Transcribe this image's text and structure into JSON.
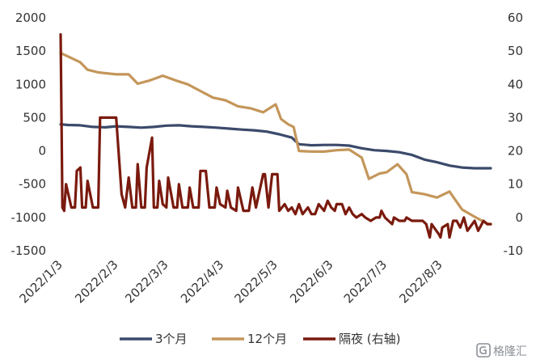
{
  "chart_data": {
    "type": "line",
    "x_type": "date",
    "x_ticks": [
      "2022/1/3",
      "2022/2/3",
      "2022/3/3",
      "2022/4/3",
      "2022/5/3",
      "2022/6/3",
      "2022/7/3",
      "2022/8/3"
    ],
    "x_range": [
      "2022/1/3",
      "2022/8/31"
    ],
    "y_left": {
      "min": -1500,
      "max": 2000,
      "step": 500,
      "ticks": [
        "2000",
        "1500",
        "1000",
        "500",
        "0",
        "-500",
        "-1000",
        "-1500"
      ]
    },
    "y_right": {
      "min": -10,
      "max": 60,
      "step": 10,
      "ticks": [
        "60",
        "50",
        "40",
        "30",
        "20",
        "10",
        "0",
        "-10"
      ]
    },
    "grid": false,
    "legend_position": "bottom",
    "series": [
      {
        "name": "3个月",
        "axis": "left",
        "color": "#3b4a6b",
        "points": [
          [
            "2022/1/3",
            400
          ],
          [
            "2022/1/7",
            390
          ],
          [
            "2022/1/14",
            385
          ],
          [
            "2022/1/21",
            360
          ],
          [
            "2022/1/28",
            355
          ],
          [
            "2022/2/3",
            370
          ],
          [
            "2022/2/10",
            360
          ],
          [
            "2022/2/17",
            350
          ],
          [
            "2022/2/24",
            360
          ],
          [
            "2022/3/3",
            380
          ],
          [
            "2022/3/10",
            385
          ],
          [
            "2022/3/17",
            370
          ],
          [
            "2022/3/24",
            360
          ],
          [
            "2022/3/31",
            350
          ],
          [
            "2022/4/7",
            335
          ],
          [
            "2022/4/14",
            320
          ],
          [
            "2022/4/21",
            310
          ],
          [
            "2022/4/28",
            290
          ],
          [
            "2022/5/5",
            250
          ],
          [
            "2022/5/12",
            200
          ],
          [
            "2022/5/16",
            100
          ],
          [
            "2022/5/23",
            85
          ],
          [
            "2022/5/30",
            90
          ],
          [
            "2022/6/6",
            90
          ],
          [
            "2022/6/13",
            80
          ],
          [
            "2022/6/20",
            40
          ],
          [
            "2022/6/27",
            10
          ],
          [
            "2022/7/4",
            0
          ],
          [
            "2022/7/11",
            -20
          ],
          [
            "2022/7/18",
            -60
          ],
          [
            "2022/7/25",
            -130
          ],
          [
            "2022/8/1",
            -170
          ],
          [
            "2022/8/8",
            -220
          ],
          [
            "2022/8/15",
            -250
          ],
          [
            "2022/8/22",
            -260
          ],
          [
            "2022/8/31",
            -260
          ]
        ]
      },
      {
        "name": "12个月",
        "axis": "left",
        "color": "#c4965a",
        "points": [
          [
            "2022/1/3",
            1470
          ],
          [
            "2022/1/7",
            1420
          ],
          [
            "2022/1/14",
            1330
          ],
          [
            "2022/1/18",
            1220
          ],
          [
            "2022/1/24",
            1180
          ],
          [
            "2022/2/3",
            1150
          ],
          [
            "2022/2/10",
            1150
          ],
          [
            "2022/2/15",
            1010
          ],
          [
            "2022/2/22",
            1060
          ],
          [
            "2022/3/1",
            1130
          ],
          [
            "2022/3/8",
            1060
          ],
          [
            "2022/3/15",
            1000
          ],
          [
            "2022/3/22",
            900
          ],
          [
            "2022/3/29",
            800
          ],
          [
            "2022/4/5",
            760
          ],
          [
            "2022/4/12",
            670
          ],
          [
            "2022/4/19",
            640
          ],
          [
            "2022/4/26",
            580
          ],
          [
            "2022/5/3",
            700
          ],
          [
            "2022/5/6",
            480
          ],
          [
            "2022/5/10",
            400
          ],
          [
            "2022/5/13",
            360
          ],
          [
            "2022/5/16",
            0
          ],
          [
            "2022/5/23",
            -10
          ],
          [
            "2022/5/30",
            -10
          ],
          [
            "2022/6/6",
            10
          ],
          [
            "2022/6/13",
            20
          ],
          [
            "2022/6/20",
            -100
          ],
          [
            "2022/6/24",
            -420
          ],
          [
            "2022/6/30",
            -340
          ],
          [
            "2022/7/4",
            -320
          ],
          [
            "2022/7/10",
            -200
          ],
          [
            "2022/7/15",
            -350
          ],
          [
            "2022/7/18",
            -620
          ],
          [
            "2022/7/25",
            -650
          ],
          [
            "2022/8/1",
            -700
          ],
          [
            "2022/8/8",
            -610
          ],
          [
            "2022/8/15",
            -880
          ],
          [
            "2022/8/22",
            -990
          ],
          [
            "2022/8/29",
            -1090
          ],
          [
            "2022/8/31",
            -1100
          ]
        ]
      },
      {
        "name": "隔夜 (右轴)",
        "axis": "right",
        "color": "#7a1a0e",
        "points": [
          [
            "2022/1/3",
            55
          ],
          [
            "2022/1/4",
            3
          ],
          [
            "2022/1/5",
            2
          ],
          [
            "2022/1/6",
            10
          ],
          [
            "2022/1/9",
            3
          ],
          [
            "2022/1/11",
            3
          ],
          [
            "2022/1/12",
            14
          ],
          [
            "2022/1/14",
            15
          ],
          [
            "2022/1/15",
            3
          ],
          [
            "2022/1/17",
            3
          ],
          [
            "2022/1/18",
            11
          ],
          [
            "2022/1/21",
            3
          ],
          [
            "2022/1/24",
            3
          ],
          [
            "2022/1/25",
            30
          ],
          [
            "2022/1/28",
            30
          ],
          [
            "2022/2/3",
            30
          ],
          [
            "2022/2/6",
            7
          ],
          [
            "2022/2/8",
            3
          ],
          [
            "2022/2/10",
            12
          ],
          [
            "2022/2/12",
            3
          ],
          [
            "2022/2/14",
            3
          ],
          [
            "2022/2/15",
            16
          ],
          [
            "2022/2/17",
            3
          ],
          [
            "2022/2/19",
            3
          ],
          [
            "2022/2/20",
            15
          ],
          [
            "2022/2/23",
            24
          ],
          [
            "2022/2/24",
            3
          ],
          [
            "2022/2/26",
            3
          ],
          [
            "2022/2/27",
            11
          ],
          [
            "2022/3/1",
            4
          ],
          [
            "2022/3/3",
            3
          ],
          [
            "2022/3/4",
            12
          ],
          [
            "2022/3/7",
            3
          ],
          [
            "2022/3/9",
            3
          ],
          [
            "2022/3/10",
            10
          ],
          [
            "2022/3/12",
            3
          ],
          [
            "2022/3/15",
            3
          ],
          [
            "2022/3/16",
            9
          ],
          [
            "2022/3/18",
            3
          ],
          [
            "2022/3/21",
            3
          ],
          [
            "2022/3/22",
            14
          ],
          [
            "2022/3/25",
            14
          ],
          [
            "2022/3/27",
            3
          ],
          [
            "2022/3/30",
            3
          ],
          [
            "2022/3/31",
            9
          ],
          [
            "2022/4/2",
            4
          ],
          [
            "2022/4/5",
            3
          ],
          [
            "2022/4/6",
            8
          ],
          [
            "2022/4/8",
            3
          ],
          [
            "2022/4/11",
            2
          ],
          [
            "2022/4/12",
            9
          ],
          [
            "2022/4/15",
            2
          ],
          [
            "2022/4/18",
            2
          ],
          [
            "2022/4/20",
            9
          ],
          [
            "2022/4/22",
            3
          ],
          [
            "2022/4/26",
            13
          ],
          [
            "2022/4/27",
            13
          ],
          [
            "2022/4/29",
            3
          ],
          [
            "2022/5/1",
            13
          ],
          [
            "2022/5/4",
            13
          ],
          [
            "2022/5/5",
            2
          ],
          [
            "2022/5/8",
            4
          ],
          [
            "2022/5/10",
            2
          ],
          [
            "2022/5/12",
            3
          ],
          [
            "2022/5/14",
            1
          ],
          [
            "2022/5/16",
            4
          ],
          [
            "2022/5/18",
            1
          ],
          [
            "2022/5/21",
            3
          ],
          [
            "2022/5/23",
            1
          ],
          [
            "2022/5/25",
            1
          ],
          [
            "2022/5/27",
            4
          ],
          [
            "2022/5/30",
            2
          ],
          [
            "2022/6/1",
            5
          ],
          [
            "2022/6/3",
            3
          ],
          [
            "2022/6/5",
            2
          ],
          [
            "2022/6/6",
            4
          ],
          [
            "2022/6/9",
            4
          ],
          [
            "2022/6/11",
            1
          ],
          [
            "2022/6/13",
            3
          ],
          [
            "2022/6/15",
            1
          ],
          [
            "2022/6/17",
            0
          ],
          [
            "2022/6/20",
            1
          ],
          [
            "2022/6/22",
            0
          ],
          [
            "2022/6/25",
            -1
          ],
          [
            "2022/6/28",
            0
          ],
          [
            "2022/6/30",
            0
          ],
          [
            "2022/7/1",
            2
          ],
          [
            "2022/7/3",
            0
          ],
          [
            "2022/7/5",
            -1
          ],
          [
            "2022/7/7",
            -2
          ],
          [
            "2022/7/8",
            0
          ],
          [
            "2022/7/11",
            -1
          ],
          [
            "2022/7/14",
            -1
          ],
          [
            "2022/7/15",
            0
          ],
          [
            "2022/7/18",
            -1
          ],
          [
            "2022/7/21",
            -1
          ],
          [
            "2022/7/24",
            -1
          ],
          [
            "2022/7/26",
            -2
          ],
          [
            "2022/7/28",
            -6
          ],
          [
            "2022/7/29",
            -2
          ],
          [
            "2022/8/2",
            -5
          ],
          [
            "2022/8/3",
            -6
          ],
          [
            "2022/8/4",
            -3
          ],
          [
            "2022/8/7",
            -2
          ],
          [
            "2022/8/8",
            -6
          ],
          [
            "2022/8/10",
            -1
          ],
          [
            "2022/8/12",
            -1
          ],
          [
            "2022/8/14",
            -3
          ],
          [
            "2022/8/16",
            0
          ],
          [
            "2022/8/18",
            -4
          ],
          [
            "2022/8/22",
            -1
          ],
          [
            "2022/8/24",
            -4
          ],
          [
            "2022/8/27",
            -1
          ],
          [
            "2022/8/29",
            -2
          ],
          [
            "2022/8/31",
            -2
          ]
        ]
      }
    ]
  },
  "watermark": {
    "text": "格隆汇"
  }
}
